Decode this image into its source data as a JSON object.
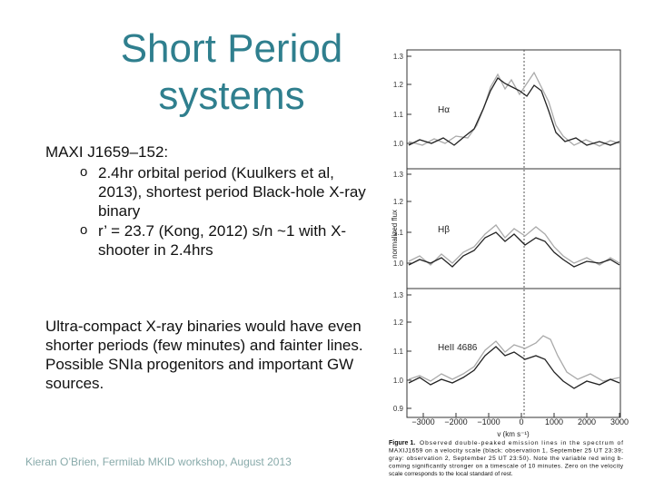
{
  "title": "Short Period systems",
  "body": {
    "heading": "MAXI J1659–152:",
    "bullets": [
      "2.4hr orbital period (Kuulkers et al, 2013), shortest period Black-hole X-ray binary",
      "r’ = 23.7 (Kong, 2012) s/n ~1 with X-shooter in 2.4hrs"
    ],
    "paragraph": "Ultra-compact X-ray binaries would have even shorter periods (few minutes) and fainter lines. Possible SNIa progenitors and important GW sources."
  },
  "footer": "Kieran O’Brien, Fermilab MKID workshop, August 2013",
  "figure": {
    "panels": [
      {
        "label": "Hα",
        "yticks": [
          "1.3",
          "1.2",
          "1.1",
          "1.0"
        ]
      },
      {
        "label": "Hβ",
        "yticks": [
          "1.3",
          "1.2",
          "1.1",
          "1.0"
        ]
      },
      {
        "label": "HeII 4686",
        "yticks": [
          "1.3",
          "1.2",
          "1.1",
          "1.0",
          "0.9"
        ]
      }
    ],
    "y_label": "normalized flux",
    "x_label": "v (km s⁻¹)",
    "xticks": [
      "−3000",
      "−2000",
      "−1000",
      "0",
      "1000",
      "2000",
      "3000"
    ],
    "caption_label": "Figure 1.",
    "caption_lines": [
      "Observed double-peaked emission lines in the spectrum of",
      "MAXIJ1659 on a velocity scale (black: observation 1, September 25 UT 23:39;",
      "gray: observation 2, September 25 UT 23:50). Note the variable red wing b-",
      "coming significantly stronger on a timescale of 10 minutes. Zero on the velocity",
      "scale corresponds to the local standard of rest."
    ]
  }
}
